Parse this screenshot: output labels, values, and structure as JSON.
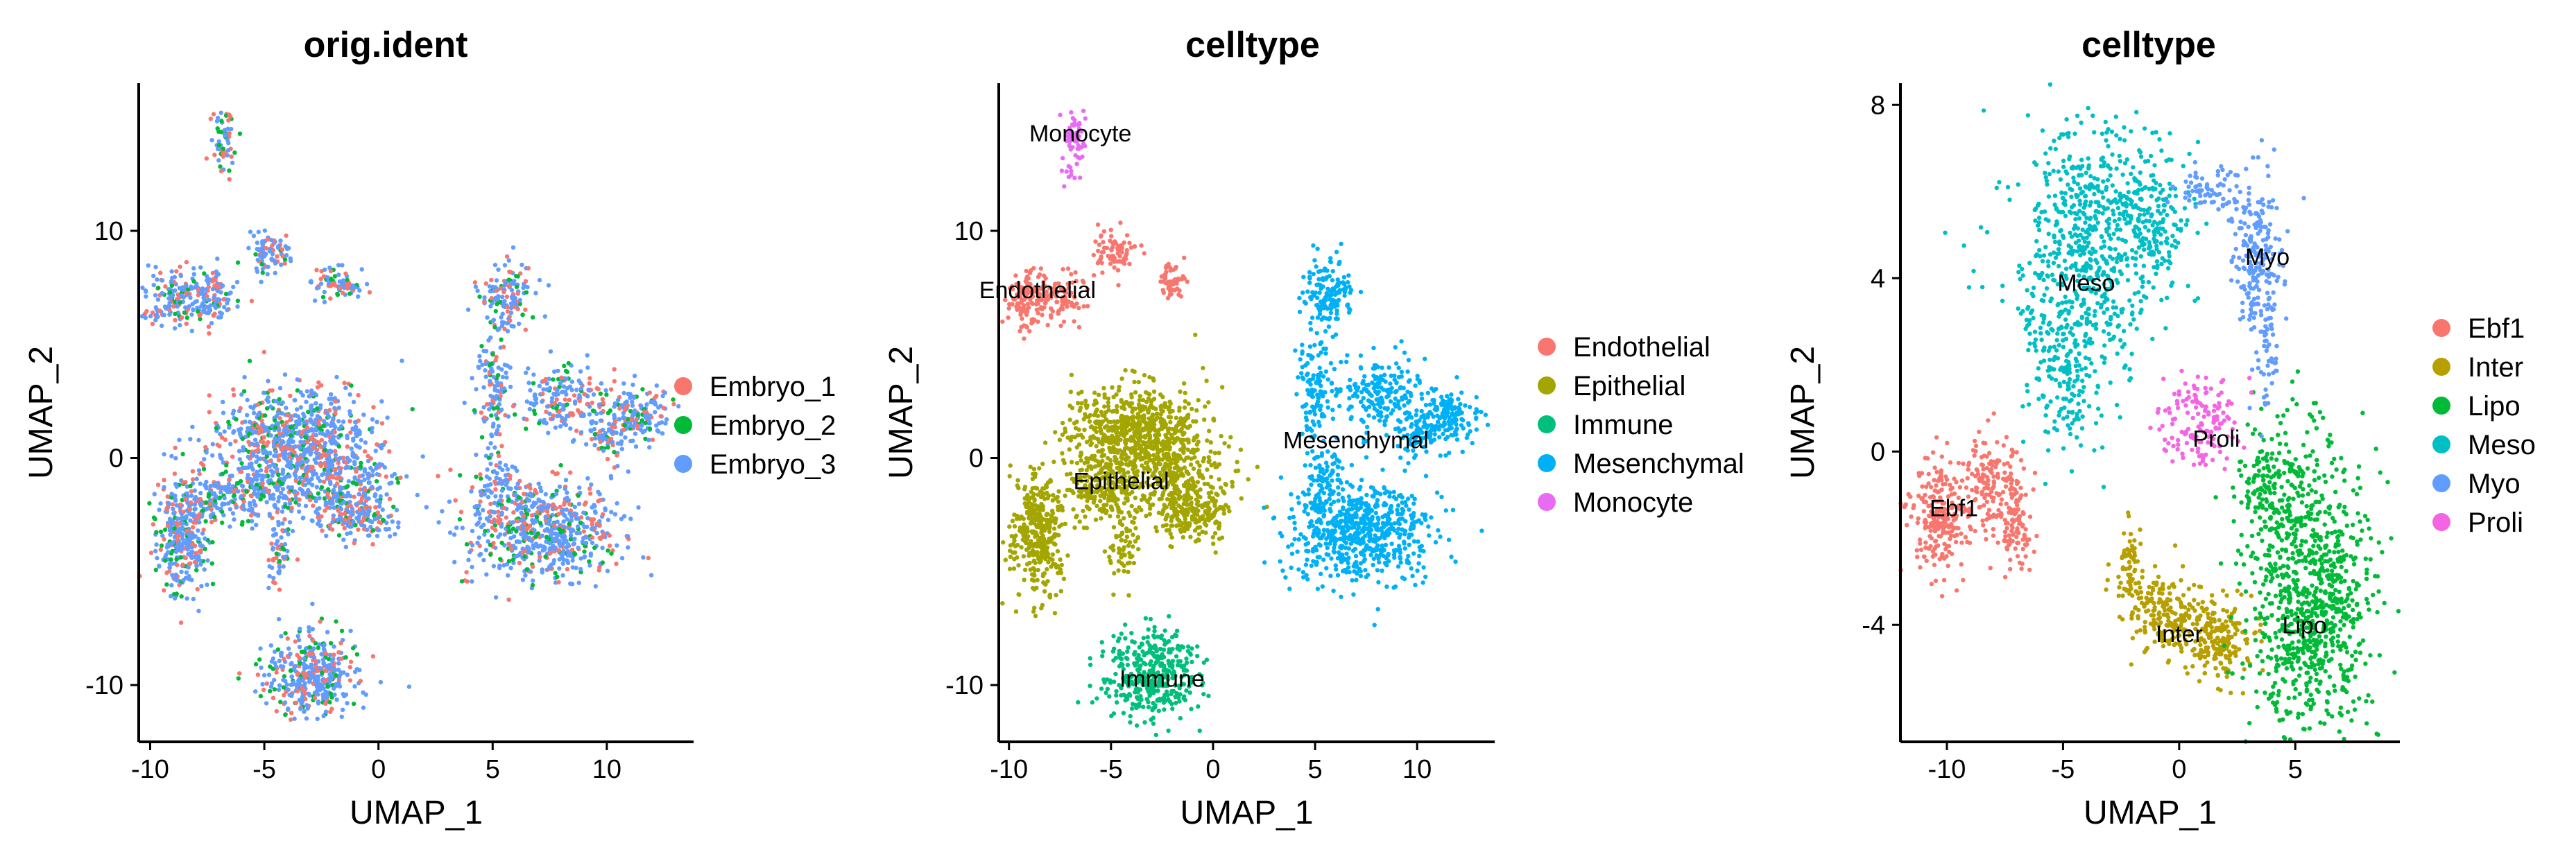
{
  "chart_data": [
    {
      "type": "scatter",
      "title": "orig.ident",
      "xlabel": "UMAP_1",
      "ylabel": "UMAP_2",
      "xlim": [
        -10.5,
        13.8
      ],
      "ylim": [
        -12.5,
        16.5
      ],
      "xticks": [
        -10,
        -5,
        0,
        5,
        10
      ],
      "yticks": [
        -10,
        0,
        10
      ],
      "legend": "right",
      "series": [
        {
          "name": "Embryo_1",
          "color": "#F8766D"
        },
        {
          "name": "Embryo_2",
          "color": "#00BA38"
        },
        {
          "name": "Embryo_3",
          "color": "#619CFF"
        }
      ]
    },
    {
      "type": "scatter",
      "title": "celltype",
      "xlabel": "UMAP_1",
      "ylabel": "UMAP_2",
      "xlim": [
        -10.5,
        13.8
      ],
      "ylim": [
        -12.5,
        16.5
      ],
      "xticks": [
        -10,
        -5,
        0,
        5,
        10
      ],
      "yticks": [
        -10,
        0,
        10
      ],
      "legend": "right",
      "series": [
        {
          "name": "Endothelial",
          "color": "#F8766D",
          "label_at": [
            -8.6,
            7.4
          ]
        },
        {
          "name": "Epithelial",
          "color": "#A3A500",
          "label_at": [
            -4.5,
            -1.0
          ]
        },
        {
          "name": "Immune",
          "color": "#00BF7D",
          "label_at": [
            -2.5,
            -9.7
          ]
        },
        {
          "name": "Mesenchymal",
          "color": "#00B0F6",
          "label_at": [
            7.0,
            0.8
          ]
        },
        {
          "name": "Monocyte",
          "color": "#E76BF3",
          "label_at": [
            -6.5,
            14.3
          ]
        }
      ]
    },
    {
      "type": "scatter",
      "title": "celltype",
      "xlabel": "UMAP_1",
      "ylabel": "UMAP_2",
      "xlim": [
        -12,
        9.5
      ],
      "ylim": [
        -6.7,
        8.5
      ],
      "xticks": [
        -10,
        -5,
        0,
        5
      ],
      "yticks": [
        -4,
        0,
        4,
        8
      ],
      "legend": "right",
      "series": [
        {
          "name": "Ebf1",
          "color": "#F8766D",
          "label_at": [
            -9.7,
            -1.3
          ]
        },
        {
          "name": "Inter",
          "color": "#B79F00",
          "label_at": [
            0.0,
            -4.2
          ]
        },
        {
          "name": "Lipo",
          "color": "#00BA38",
          "label_at": [
            5.4,
            -4.0
          ]
        },
        {
          "name": "Meso",
          "color": "#00BFC4",
          "label_at": [
            -4.0,
            3.9
          ]
        },
        {
          "name": "Myo",
          "color": "#619CFF",
          "label_at": [
            3.8,
            4.5
          ]
        },
        {
          "name": "Proli",
          "color": "#F564E3",
          "label_at": [
            1.6,
            0.3
          ]
        }
      ]
    }
  ]
}
